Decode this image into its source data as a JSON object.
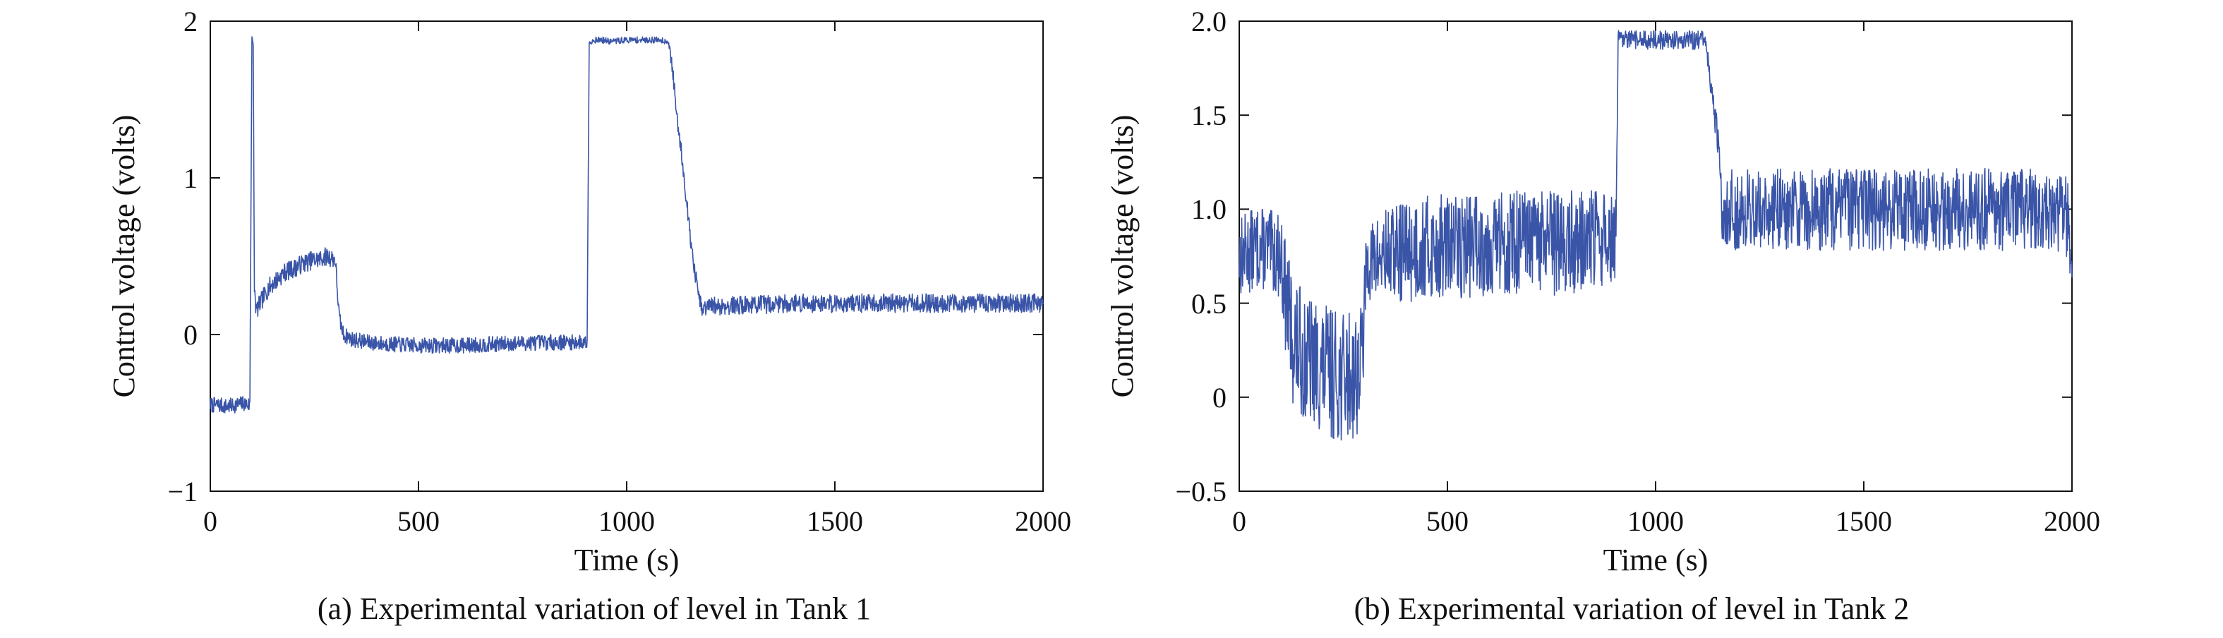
{
  "chart_data": [
    {
      "type": "line",
      "caption": "(a) Experimental variation of level in Tank 1",
      "title": "",
      "xlabel": "Time (s)",
      "ylabel": "Control voltage (volts)",
      "xlim": [
        0,
        2000
      ],
      "ylim": [
        -1,
        2
      ],
      "xticks": [
        0,
        500,
        1000,
        1500,
        2000
      ],
      "xtick_labels": [
        "0",
        "500",
        "1000",
        "1500",
        "2000"
      ],
      "yticks": [
        -1,
        0,
        1,
        2
      ],
      "ytick_labels": [
        "−1",
        "0",
        "1",
        "2"
      ],
      "grid": false,
      "line_color": "#3a55a8",
      "series": [
        {
          "x": [
            0,
            20,
            40,
            60,
            80,
            95,
            100,
            103,
            106,
            110,
            120,
            140,
            160,
            180,
            200,
            220,
            240,
            260,
            280,
            300,
            310,
            320,
            340,
            380,
            420,
            500,
            600,
            700,
            800,
            880,
            905,
            910,
            915,
            920,
            940,
            960,
            1000,
            1040,
            1080,
            1100,
            1110,
            1120,
            1130,
            1140,
            1150,
            1160,
            1170,
            1180,
            1190,
            1200,
            1300,
            1400,
            1500,
            1600,
            1700,
            1800,
            1900,
            2000
          ],
          "y": [
            -0.45,
            -0.45,
            -0.46,
            -0.45,
            -0.44,
            -0.45,
            1.9,
            1.85,
            0.3,
            0.15,
            0.2,
            0.3,
            0.35,
            0.4,
            0.42,
            0.45,
            0.47,
            0.48,
            0.5,
            0.48,
            0.1,
            0.0,
            -0.03,
            -0.05,
            -0.06,
            -0.07,
            -0.07,
            -0.06,
            -0.05,
            -0.05,
            -0.05,
            1.88,
            1.86,
            1.88,
            1.88,
            1.87,
            1.88,
            1.88,
            1.88,
            1.87,
            1.7,
            1.4,
            1.2,
            0.95,
            0.7,
            0.45,
            0.3,
            0.15,
            0.17,
            0.18,
            0.19,
            0.2,
            0.2,
            0.2,
            0.2,
            0.2,
            0.2,
            0.2
          ],
          "noise": [
            0.05,
            0.05,
            0.05,
            0.05,
            0.05,
            0.05,
            0.0,
            0.0,
            0.05,
            0.06,
            0.06,
            0.06,
            0.06,
            0.06,
            0.06,
            0.06,
            0.06,
            0.06,
            0.06,
            0.06,
            0.05,
            0.05,
            0.05,
            0.05,
            0.05,
            0.05,
            0.05,
            0.05,
            0.05,
            0.05,
            0.05,
            0.02,
            0.02,
            0.02,
            0.02,
            0.02,
            0.02,
            0.02,
            0.02,
            0.02,
            0.05,
            0.05,
            0.05,
            0.05,
            0.05,
            0.05,
            0.06,
            0.06,
            0.06,
            0.06,
            0.06,
            0.06,
            0.06,
            0.06,
            0.06,
            0.06,
            0.06,
            0.06
          ]
        }
      ]
    },
    {
      "type": "line",
      "caption": "(b) Experimental variation of level in Tank 2",
      "title": "",
      "xlabel": "Time (s)",
      "ylabel": "Control voltage (volts)",
      "xlim": [
        0,
        2000
      ],
      "ylim": [
        -0.5,
        2.0
      ],
      "xticks": [
        0,
        500,
        1000,
        1500,
        2000
      ],
      "xtick_labels": [
        "0",
        "500",
        "1000",
        "1500",
        "2000"
      ],
      "yticks": [
        -0.5,
        0,
        0.5,
        1.0,
        1.5,
        2.0
      ],
      "ytick_labels": [
        "−0.5",
        "0",
        "0.5",
        "1.0",
        "1.5",
        "2.0"
      ],
      "grid": false,
      "line_color": "#3a55a8",
      "series": [
        {
          "x": [
            0,
            50,
            100,
            110,
            130,
            160,
            200,
            250,
            290,
            300,
            305,
            310,
            350,
            400,
            500,
            600,
            700,
            800,
            900,
            905,
            910,
            920,
            950,
            1000,
            1050,
            1100,
            1120,
            1130,
            1140,
            1150,
            1160,
            1200,
            1300,
            1400,
            1500,
            1600,
            1700,
            1800,
            1900,
            1990,
            2000
          ],
          "y": [
            0.75,
            0.8,
            0.75,
            0.55,
            0.3,
            0.2,
            0.15,
            0.1,
            0.15,
            0.4,
            0.7,
            0.72,
            0.75,
            0.78,
            0.8,
            0.82,
            0.82,
            0.82,
            0.85,
            0.85,
            1.9,
            1.9,
            1.9,
            1.9,
            1.9,
            1.9,
            1.9,
            1.7,
            1.55,
            1.3,
            1.0,
            1.0,
            1.0,
            1.0,
            1.0,
            1.0,
            1.0,
            1.0,
            1.0,
            0.95,
            0.65
          ],
          "noise": [
            0.22,
            0.22,
            0.22,
            0.3,
            0.35,
            0.35,
            0.35,
            0.35,
            0.35,
            0.25,
            0.2,
            0.2,
            0.25,
            0.28,
            0.28,
            0.28,
            0.28,
            0.28,
            0.25,
            0.25,
            0.05,
            0.05,
            0.05,
            0.05,
            0.05,
            0.05,
            0.05,
            0.08,
            0.08,
            0.15,
            0.2,
            0.22,
            0.22,
            0.22,
            0.22,
            0.22,
            0.22,
            0.22,
            0.22,
            0.22,
            0.1
          ]
        }
      ]
    }
  ]
}
